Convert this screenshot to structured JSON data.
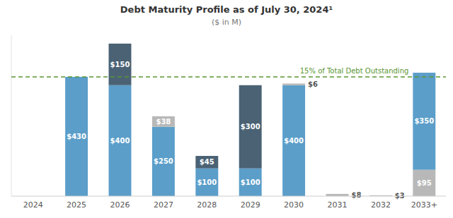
{
  "chart_data": {
    "type": "bar",
    "stacked": true,
    "title": "Debt Maturity Profile as of July 30, 2024¹",
    "subtitle": "($ in M)",
    "categories": [
      "2024",
      "2025",
      "2026",
      "2027",
      "2028",
      "2029",
      "2030",
      "2031",
      "2032",
      "2033+"
    ],
    "series": [
      {
        "values": [
          0,
          430,
          400,
          250,
          100,
          100,
          400,
          0,
          0,
          95
        ],
        "value_labels": [
          null,
          "$430",
          "$400",
          "$250",
          "$100",
          "$100",
          "$400",
          null,
          null,
          "$95"
        ],
        "colors": [
          "#5b9ec9",
          "#5b9ec9",
          "#5b9ec9",
          "#5b9ec9",
          "#5b9ec9",
          "#5b9ec9",
          "#5b9ec9",
          "#b8b8b8",
          "#b8b8b8",
          "#b8b8b8"
        ]
      },
      {
        "values": [
          0,
          0,
          150,
          38,
          45,
          300,
          6,
          8,
          3,
          350
        ],
        "value_labels": [
          null,
          null,
          "$150",
          "$38",
          "$45",
          "$300",
          "$6",
          "$8",
          "$3",
          "$350"
        ],
        "colors": [
          "#5b9ec9",
          "#5b9ec9",
          "#4a6274",
          "#b8b8b8",
          "#4a6274",
          "#4a6274",
          "#b8b8b8",
          "#b8b8b8",
          "#b8b8b8",
          "#5b9ec9"
        ]
      }
    ],
    "annotations": [
      {
        "y": 430,
        "text": "15% of Total Debt Outstanding",
        "color": "#5a9632",
        "line_style": "dashed"
      }
    ],
    "ylim": [
      0,
      580
    ],
    "data_labels": true,
    "tick_labels": "x",
    "grid": false
  }
}
